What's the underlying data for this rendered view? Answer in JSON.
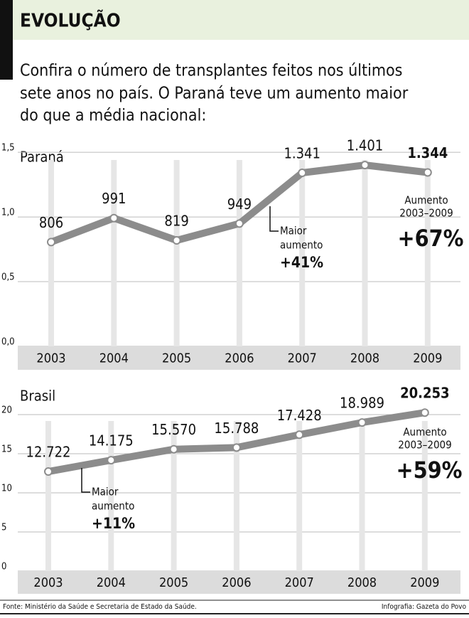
{
  "header": {
    "title": "EVOLUÇÃO",
    "intro": [
      "Confira o número de transplantes feitos nos últimos",
      "sete anos no país. O Paraná teve um aumento maior",
      "do que a média nacional:"
    ]
  },
  "chart_data": [
    {
      "type": "line",
      "title": "Paraná",
      "categories": [
        "2003",
        "2004",
        "2005",
        "2006",
        "2007",
        "2008",
        "2009"
      ],
      "series": [
        {
          "color": "#8c8c8c",
          "values": [
            0.806,
            0.991,
            0.819,
            0.949,
            1.341,
            1.401,
            1.344
          ],
          "value_labels": [
            "806",
            "991",
            "819",
            "949",
            "1.341",
            "1.401",
            "1.344"
          ]
        }
      ],
      "ylim": [
        0,
        1.55
      ],
      "yticks": [
        {
          "value": 0,
          "label": "0,0"
        },
        {
          "value": 0.5,
          "label": "0,5"
        },
        {
          "value": 1,
          "label": "1,0"
        },
        {
          "value": 1.5,
          "label": "1,5"
        }
      ],
      "grid": true,
      "annotations": [
        {
          "text": [
            "Maior",
            "aumento"
          ],
          "highlight": "+41%"
        },
        {
          "text": [
            "Aumento",
            "2003–2009"
          ],
          "highlight": "+67%"
        }
      ]
    },
    {
      "type": "line",
      "title": "Brasil",
      "categories": [
        "2003",
        "2004",
        "2005",
        "2006",
        "2007",
        "2008",
        "2009"
      ],
      "series": [
        {
          "color": "#8c8c8c",
          "values": [
            12.722,
            14.175,
            15.57,
            15.788,
            17.428,
            18.989,
            20.253
          ],
          "value_labels": [
            "12.722",
            "14.175",
            "15.570",
            "15.788",
            "17.428",
            "18.989",
            "20.253"
          ]
        }
      ],
      "ylim": [
        0,
        21
      ],
      "yticks": [
        0,
        5,
        10,
        15,
        20
      ],
      "grid": true,
      "annotations": [
        {
          "text": [
            "Maior",
            "aumento"
          ],
          "highlight": "+11%"
        },
        {
          "text": [
            "Aumento",
            "2003–2009"
          ],
          "highlight": "+59%"
        }
      ]
    }
  ],
  "footer": {
    "source": "Fonte: Ministério da Saúde e Secretaria de Estado da Saúde.",
    "credit": "Infografia: Gazeta do Povo"
  }
}
